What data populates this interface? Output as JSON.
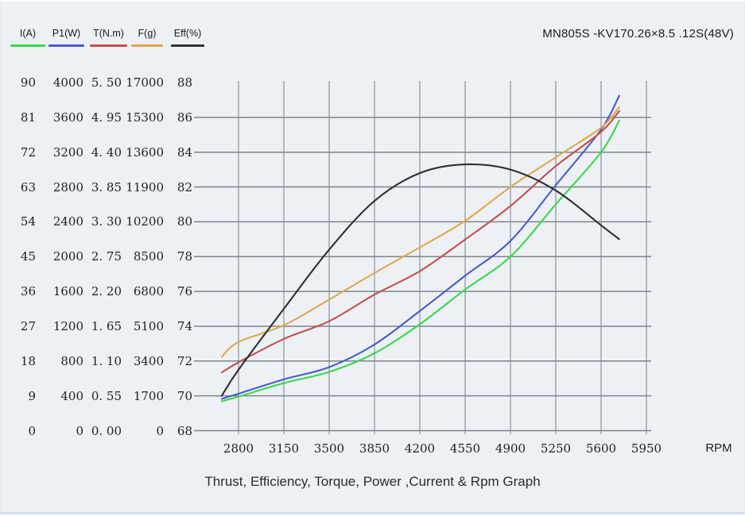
{
  "window": {
    "background": "#edf1f5"
  },
  "header": {
    "title": "MN805S -KV170.26×8.5 .12S(48V)"
  },
  "chart_data": {
    "type": "line",
    "title": "MN805S -KV170.26×8.5 .12S(48V)",
    "caption": "Thrust, Efficiency, Torque, Power ,Current & Rpm Graph",
    "grid": "on",
    "legend_position": "top-left",
    "x_axis": {
      "label": "RPM",
      "ticks": [
        2800,
        3150,
        3500,
        3850,
        4200,
        4550,
        4900,
        5250,
        5600,
        5950
      ],
      "drawn_range": [
        2670,
        5740
      ]
    },
    "y_axes": [
      {
        "name": "I(A)",
        "min": 0,
        "max": 90,
        "ticks": [
          "90",
          "81",
          "72",
          "63",
          "54",
          "45",
          "36",
          "27",
          "18",
          "9",
          "0"
        ]
      },
      {
        "name": "P1(W)",
        "min": 0,
        "max": 4000,
        "ticks": [
          "4000",
          "3600",
          "3200",
          "2800",
          "2400",
          "2000",
          "1600",
          "1200",
          "800",
          "400",
          "0"
        ]
      },
      {
        "name": "T(N.m)",
        "min": 0,
        "max": 5.5,
        "ticks": [
          "5. 50",
          "4. 95",
          "4. 40",
          "3. 85",
          "3. 30",
          "2. 75",
          "2. 20",
          "1. 65",
          "1. 10",
          "0. 55",
          "0. 00"
        ]
      },
      {
        "name": "F(g)",
        "min": 0,
        "max": 17000,
        "ticks": [
          "17000",
          "15300",
          "13600",
          "11900",
          "10200",
          "8500",
          "6800",
          "5100",
          "3400",
          "1700",
          "0"
        ]
      },
      {
        "name": "Eff(%)",
        "min": 68,
        "max": 88,
        "ticks": [
          "88",
          "86",
          "84",
          "82",
          "80",
          "78",
          "76",
          "74",
          "72",
          "70",
          "68"
        ]
      }
    ],
    "x": [
      2670,
      2800,
      3150,
      3500,
      3850,
      4200,
      4550,
      4900,
      5250,
      5600,
      5740
    ],
    "series": [
      {
        "name": "I(A)",
        "axis": 0,
        "color": "#36d94a",
        "values": [
          7.6,
          8.8,
          12.3,
          15.2,
          20.0,
          27.5,
          36.5,
          45.0,
          58.5,
          72.0,
          80.2
        ]
      },
      {
        "name": "P1(W)",
        "axis": 1,
        "color": "#4a5cc7",
        "values": [
          365,
          425,
          590,
          730,
          990,
          1375,
          1780,
          2180,
          2820,
          3460,
          3850
        ]
      },
      {
        "name": "T(N.m)",
        "axis": 2,
        "color": "#c4504e",
        "values": [
          0.92,
          1.08,
          1.45,
          1.73,
          2.15,
          2.52,
          3.02,
          3.55,
          4.18,
          4.72,
          5.05
        ]
      },
      {
        "name": "F(g)",
        "axis": 3,
        "color": "#dfa74f",
        "values": [
          3600,
          4330,
          5150,
          6400,
          7700,
          8950,
          10250,
          11900,
          13350,
          14800,
          15800
        ]
      },
      {
        "name": "Eff(%)",
        "axis": 4,
        "color": "#2f2f2f",
        "values": [
          70.0,
          71.5,
          75.0,
          78.4,
          81.2,
          82.8,
          83.3,
          83.0,
          81.8,
          79.8,
          79.0
        ]
      }
    ]
  }
}
